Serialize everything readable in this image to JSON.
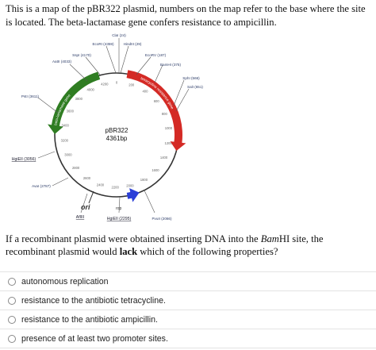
{
  "intro": {
    "part1": "This is a map of the pBR322 plasmid, numbers on the map refer to the base where the site is located.  The beta-lactamase gene confers resistance to ampicillin."
  },
  "map": {
    "center_label_1": "pBR322",
    "center_label_2": "4361bp",
    "sites": [
      {
        "label": "ClaI (24)"
      },
      {
        "label": "EcoRI (4359)"
      },
      {
        "label": "HindIII (29)"
      },
      {
        "label": "SspI (4170)"
      },
      {
        "label": "EcoRV (187)"
      },
      {
        "label": "AatII (4033)"
      },
      {
        "label": "BamHI (375)"
      },
      {
        "label": "SphI (566)"
      },
      {
        "label": "SalI (651)"
      },
      {
        "label": "PstI (3611)"
      },
      {
        "label": "HgiEII (3056)"
      },
      {
        "label": "AvaI (2787)"
      },
      {
        "label": "AflIII"
      },
      {
        "label": "HgiEII (2295)"
      },
      {
        "label": "PvuII (2066)"
      }
    ],
    "gene_amp": "beta-lactamase gene",
    "gene_tet": "tetracycline resistance gene",
    "ori": "ori",
    "rop": "rop",
    "ticks": [
      "0",
      "200",
      "400",
      "600",
      "800",
      "1000",
      "1200",
      "1400",
      "1600",
      "1800",
      "2000",
      "2200",
      "2400",
      "2600",
      "2800",
      "3000",
      "3200",
      "3400",
      "3600",
      "3800",
      "4000",
      "4200"
    ],
    "colors": {
      "amp": "#2f7d22",
      "tet": "#d42a25",
      "rop": "#2b3fd8",
      "backbone": "#333333"
    }
  },
  "question": {
    "pre": "If a recombinant plasmid were obtained inserting DNA into the ",
    "enzyme": "Bam",
    "enzyme_suffix": "HI site, the recombinant plasmid would ",
    "bold": "lack",
    "post": " which of the following properties?"
  },
  "options": [
    "autonomous replication",
    "resistance to the antibiotic tetracycline.",
    "resistance to the antibiotic ampicillin.",
    "presence of at least two promoter sites."
  ]
}
